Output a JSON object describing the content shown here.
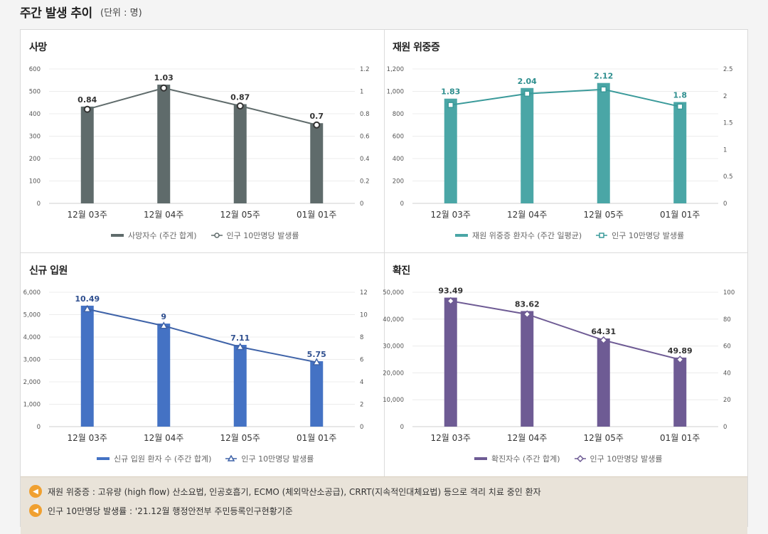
{
  "page": {
    "title": "주간 발생 추이",
    "unit": "(단위 : 명)"
  },
  "notes": [
    "재원 위중증 : 고유량 (high flow) 산소요법, 인공호흡기, ECMO (체외막산소공급), CRRT(지속적인대체요법) 등으로 격리 치료 중인 환자",
    "인구 10만명당 발생률 : '21.12월 행정안전부 주민등록인구현황기준"
  ],
  "icons": {
    "note": "speaker-icon"
  },
  "chart_data": [
    {
      "id": "deaths",
      "panel_title": "사망",
      "type": "bar",
      "categories": [
        "12월 03주",
        "12월 04주",
        "12월 05주",
        "01월 01주"
      ],
      "bar_series": {
        "name": "사망자수 (주간 합계)",
        "values": [
          432,
          530,
          443,
          358
        ],
        "color": "#5f6b6b"
      },
      "line_series": {
        "name": "인구 10만명당 발생률",
        "values": [
          0.84,
          1.03,
          0.87,
          0.7
        ],
        "labels": [
          "0.84",
          "1.03",
          "0.87",
          "0.7"
        ],
        "color": "#5f6b6b",
        "marker": "circle"
      },
      "y_left": {
        "min": 0,
        "max": 600,
        "ticks": [
          "0",
          "100",
          "200",
          "300",
          "400",
          "500",
          "600"
        ]
      },
      "y_right": {
        "min": 0,
        "max": 1.2,
        "ticks": [
          "0",
          "0.2",
          "0.4",
          "0.6",
          "0.8",
          "1",
          "1.2"
        ]
      },
      "label_color": "#333333",
      "grid": true,
      "legend_position": "bottom"
    },
    {
      "id": "critical",
      "panel_title": "재원 위중증",
      "type": "bar",
      "categories": [
        "12월 03주",
        "12월 04주",
        "12월 05주",
        "01월 01주"
      ],
      "bar_series": {
        "name": "재원 위중증 환자수 (주간 일평균)",
        "values": [
          935,
          1030,
          1075,
          905
        ],
        "color": "#4aa6a6"
      },
      "line_series": {
        "name": "인구 10만명당 발생률",
        "values": [
          1.83,
          2.04,
          2.12,
          1.8
        ],
        "labels": [
          "1.83",
          "2.04",
          "2.12",
          "1.8"
        ],
        "color": "#3a9a9a",
        "marker": "square"
      },
      "y_left": {
        "min": 0,
        "max": 1200,
        "ticks": [
          "0",
          "200",
          "400",
          "600",
          "800",
          "1,000",
          "1,200"
        ]
      },
      "y_right": {
        "min": 0,
        "max": 2.5,
        "ticks": [
          "0",
          "0.5",
          "1",
          "1.5",
          "2",
          "2.5"
        ]
      },
      "label_color": "#2f8f8f",
      "grid": true,
      "legend_position": "bottom"
    },
    {
      "id": "admissions",
      "panel_title": "신규 입원",
      "type": "bar",
      "categories": [
        "12월 03주",
        "12월 04주",
        "12월 05주",
        "01월 01주"
      ],
      "bar_series": {
        "name": "신규 입원 환자 수 (주간 합계)",
        "values": [
          5400,
          4600,
          3650,
          2920
        ],
        "color": "#4472c4"
      },
      "line_series": {
        "name": "인구 10만명당 발생률",
        "values": [
          10.49,
          9,
          7.11,
          5.75
        ],
        "labels": [
          "10.49",
          "9",
          "7.11",
          "5.75"
        ],
        "color": "#3f63a8",
        "marker": "triangle"
      },
      "y_left": {
        "min": 0,
        "max": 6000,
        "ticks": [
          "0",
          "1,000",
          "2,000",
          "3,000",
          "4,000",
          "5,000",
          "6,000"
        ]
      },
      "y_right": {
        "min": 0,
        "max": 12,
        "ticks": [
          "0",
          "2",
          "4",
          "6",
          "8",
          "10",
          "12"
        ]
      },
      "label_color": "#2f4f8f",
      "grid": true,
      "legend_position": "bottom"
    },
    {
      "id": "confirmed",
      "panel_title": "확진",
      "type": "bar",
      "categories": [
        "12월 03주",
        "12월 04주",
        "12월 05주",
        "01월 01주"
      ],
      "bar_series": {
        "name": "확진자수 (주간 합계)",
        "values": [
          48000,
          43000,
          32800,
          25700
        ],
        "color": "#6e5b94"
      },
      "line_series": {
        "name": "인구 10만명당 발생률",
        "values": [
          93.49,
          83.62,
          64.31,
          49.89
        ],
        "labels": [
          "93.49",
          "83.62",
          "64.31",
          "49.89"
        ],
        "color": "#6e5b94",
        "marker": "diamond"
      },
      "y_left": {
        "min": 0,
        "max": 50000,
        "ticks": [
          "0",
          "10,000",
          "20,000",
          "30,000",
          "40,000",
          "50,000"
        ]
      },
      "y_right": {
        "min": 0,
        "max": 100,
        "ticks": [
          "0",
          "20",
          "40",
          "60",
          "80",
          "100"
        ]
      },
      "label_color": "#333333",
      "grid": true,
      "legend_position": "bottom"
    }
  ]
}
